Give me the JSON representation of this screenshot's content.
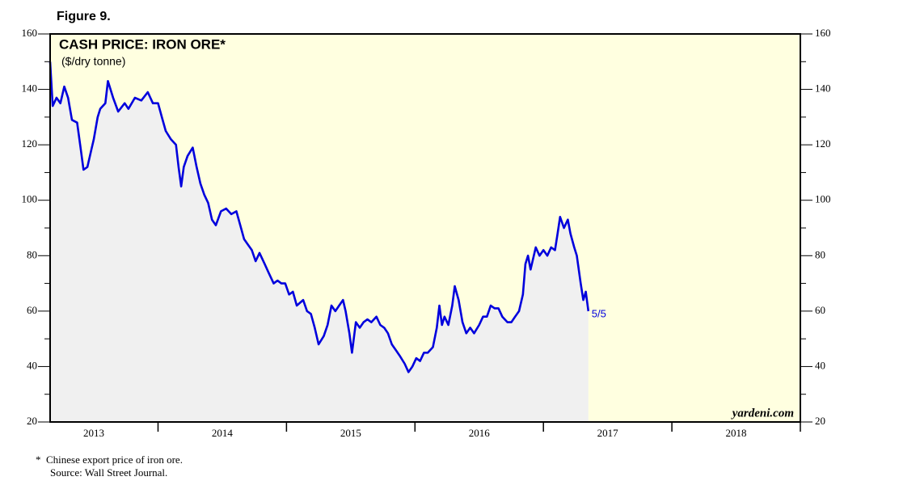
{
  "chart_data": {
    "type": "line",
    "figure_label": "Figure 9.",
    "title": "CASH PRICE: IRON ORE*",
    "subtitle": "($/dry tonne)",
    "source_mark": "yardeni.com",
    "end_label": "5/5",
    "footnotes": [
      "*  Chinese export price of iron ore.",
      "Source: Wall Street Journal."
    ],
    "color": "#0000dd",
    "fill_color": "#f0f0f0",
    "background": "#ffffe0",
    "xlim": [
      2013.16,
      2019.0
    ],
    "ylim": [
      20,
      160
    ],
    "yticks": [
      20,
      40,
      60,
      80,
      100,
      120,
      140,
      160
    ],
    "yminorticks": [
      30,
      50,
      70,
      90,
      110,
      130,
      150
    ],
    "xticks": [
      {
        "value": 2013.5,
        "label": "2013"
      },
      {
        "value": 2014.5,
        "label": "2014"
      },
      {
        "value": 2015.5,
        "label": "2015"
      },
      {
        "value": 2016.5,
        "label": "2016"
      },
      {
        "value": 2017.5,
        "label": "2017"
      },
      {
        "value": 2018.5,
        "label": "2018"
      }
    ],
    "xtick_marks": [
      2014,
      2015,
      2016,
      2017,
      2018,
      2019
    ],
    "x": [
      2013.16,
      2013.18,
      2013.21,
      2013.24,
      2013.27,
      2013.3,
      2013.33,
      2013.37,
      2013.4,
      2013.42,
      2013.45,
      2013.48,
      2013.5,
      2013.53,
      2013.55,
      2013.59,
      2013.61,
      2013.65,
      2013.69,
      2013.74,
      2013.77,
      2013.82,
      2013.87,
      2013.92,
      2013.96,
      2014.0,
      2014.03,
      2014.06,
      2014.1,
      2014.14,
      2014.16,
      2014.18,
      2014.2,
      2014.23,
      2014.27,
      2014.3,
      2014.33,
      2014.36,
      2014.39,
      2014.42,
      2014.45,
      2014.49,
      2014.53,
      2014.57,
      2014.61,
      2014.64,
      2014.67,
      2014.7,
      2014.73,
      2014.76,
      2014.79,
      2014.83,
      2014.86,
      2014.9,
      2014.93,
      2014.96,
      2014.99,
      2015.02,
      2015.05,
      2015.08,
      2015.13,
      2015.16,
      2015.19,
      2015.22,
      2015.25,
      2015.29,
      2015.32,
      2015.35,
      2015.38,
      2015.41,
      2015.44,
      2015.46,
      2015.49,
      2015.51,
      2015.54,
      2015.57,
      2015.6,
      2015.63,
      2015.66,
      2015.7,
      2015.73,
      2015.76,
      2015.79,
      2015.82,
      2015.85,
      2015.88,
      2015.92,
      2015.95,
      2015.98,
      2016.01,
      2016.04,
      2016.07,
      2016.1,
      2016.14,
      2016.17,
      2016.19,
      2016.21,
      2016.23,
      2016.26,
      2016.29,
      2016.31,
      2016.34,
      2016.37,
      2016.4,
      2016.43,
      2016.46,
      2016.5,
      2016.53,
      2016.56,
      2016.59,
      2016.62,
      2016.65,
      2016.68,
      2016.72,
      2016.75,
      2016.78,
      2016.81,
      2016.84,
      2016.86,
      2016.88,
      2016.9,
      2016.94,
      2016.97,
      2017.0,
      2017.03,
      2017.06,
      2017.09,
      2017.11,
      2017.13,
      2017.16,
      2017.19,
      2017.21,
      2017.24,
      2017.26,
      2017.29,
      2017.31,
      2017.33,
      2017.35
    ],
    "values": [
      150,
      134,
      137,
      135,
      141,
      137,
      129,
      128,
      118,
      111,
      112,
      118,
      122,
      130,
      133,
      135,
      143,
      137,
      132,
      135,
      133,
      137,
      136,
      139,
      135,
      135,
      130,
      125,
      122,
      120,
      112,
      105,
      112,
      116,
      119,
      112,
      106,
      102,
      99,
      93,
      91,
      96,
      97,
      95,
      96,
      91,
      86,
      84,
      82,
      78,
      81,
      77,
      74,
      70,
      71,
      70,
      70,
      66,
      67,
      62,
      64,
      60,
      59,
      54,
      48,
      51,
      55,
      62,
      60,
      62,
      64,
      60,
      52,
      45,
      56,
      54,
      56,
      57,
      56,
      58,
      55,
      54,
      52,
      48,
      46,
      44,
      41,
      38,
      40,
      43,
      42,
      45,
      45,
      47,
      54,
      62,
      55,
      58,
      55,
      62,
      69,
      64,
      56,
      52,
      54,
      52,
      55,
      58,
      58,
      62,
      61,
      61,
      58,
      56,
      56,
      58,
      60,
      66,
      77,
      80,
      75,
      83,
      80,
      82,
      80,
      83,
      82,
      88,
      94,
      90,
      93,
      88,
      83,
      80,
      70,
      64,
      67,
      60
    ]
  }
}
